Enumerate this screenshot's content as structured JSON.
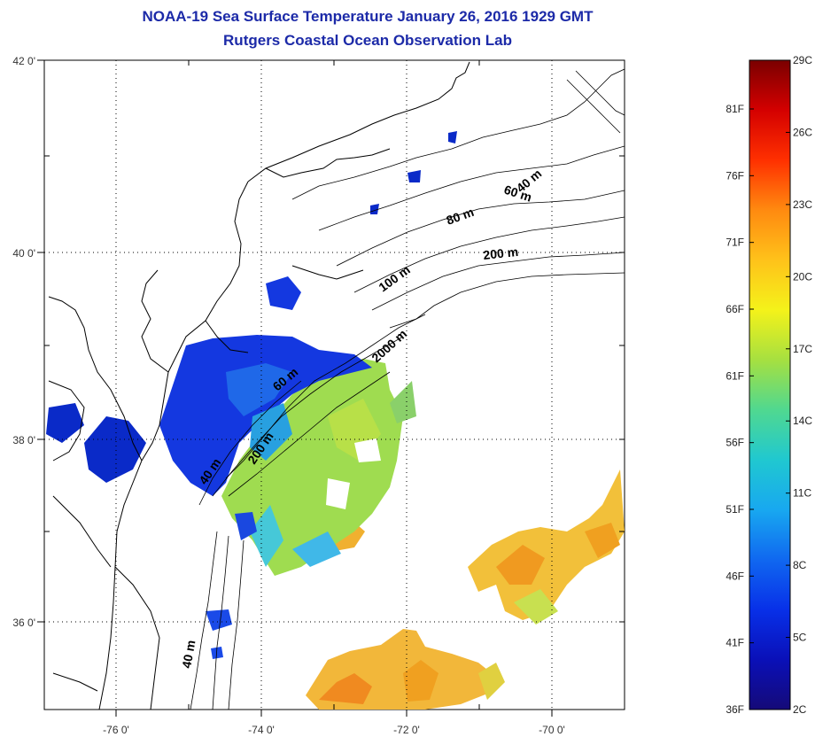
{
  "header": {
    "title": "NOAA-19 Sea Surface Temperature January 26, 2016 1929 GMT",
    "subtitle": "Rutgers Coastal Ocean Observation Lab"
  },
  "map": {
    "lat_ticks": [
      "42 0'",
      "40 0'",
      "38 0'",
      "36 0'"
    ],
    "lon_ticks": [
      "-76 0'",
      "-74 0'",
      "-72 0'",
      "-70 0'"
    ],
    "contour_labels": [
      "40 m",
      "60 m",
      "80 m",
      "200 m",
      "100 m",
      "2000 m",
      "60 m",
      "200 m",
      "40 m",
      "40 m"
    ]
  },
  "colorbar": {
    "fahrenheit_labels": [
      "81F",
      "76F",
      "71F",
      "66F",
      "61F",
      "56F",
      "51F",
      "46F",
      "41F",
      "36F"
    ],
    "celsius_labels": [
      "29C",
      "26C",
      "23C",
      "20C",
      "17C",
      "14C",
      "11C",
      "8C",
      "5C",
      "2C"
    ],
    "gradient_stops": [
      "#7a0000",
      "#d40000",
      "#ff3000",
      "#ff8a10",
      "#ffc21a",
      "#f4f21a",
      "#a6e040",
      "#50d890",
      "#20c8d0",
      "#18a8f0",
      "#1068f0",
      "#0830e8",
      "#0a10b8",
      "#150a78"
    ]
  }
}
